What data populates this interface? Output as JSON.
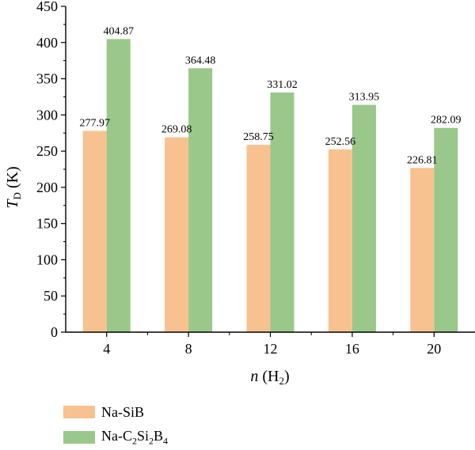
{
  "chart_data": {
    "type": "bar",
    "categories": [
      "4",
      "8",
      "12",
      "16",
      "20"
    ],
    "series": [
      {
        "name": "Na-SiB",
        "values": [
          277.97,
          269.08,
          258.75,
          252.56,
          226.81
        ],
        "color": "#f7c28f"
      },
      {
        "name": "Na-C2Si2B4",
        "values": [
          404.87,
          364.48,
          331.02,
          313.95,
          282.09
        ],
        "color": "#9ac78a"
      }
    ],
    "value_labels": [
      [
        "277.97",
        "269.08",
        "258.75",
        "252.56",
        "226.81"
      ],
      [
        "404.87",
        "364.48",
        "331.02",
        "313.95",
        "282.09"
      ]
    ],
    "ylim": [
      0,
      450
    ],
    "yticks": [
      "0",
      "50",
      "100",
      "150",
      "200",
      "250",
      "300",
      "350",
      "400",
      "450"
    ],
    "xlabel": "n (H2)",
    "ylabel": "TD (K)",
    "grid": false,
    "legend_position": "bottom-left"
  },
  "legend": {
    "items": [
      {
        "label": "Na-SiB",
        "color": "#f7c28f"
      },
      {
        "label_main": "Na-C",
        "sub1": "2",
        "mid": "Si",
        "sub2": "2",
        "mid2": "B",
        "sub3": "4",
        "color": "#9ac78a"
      }
    ]
  }
}
